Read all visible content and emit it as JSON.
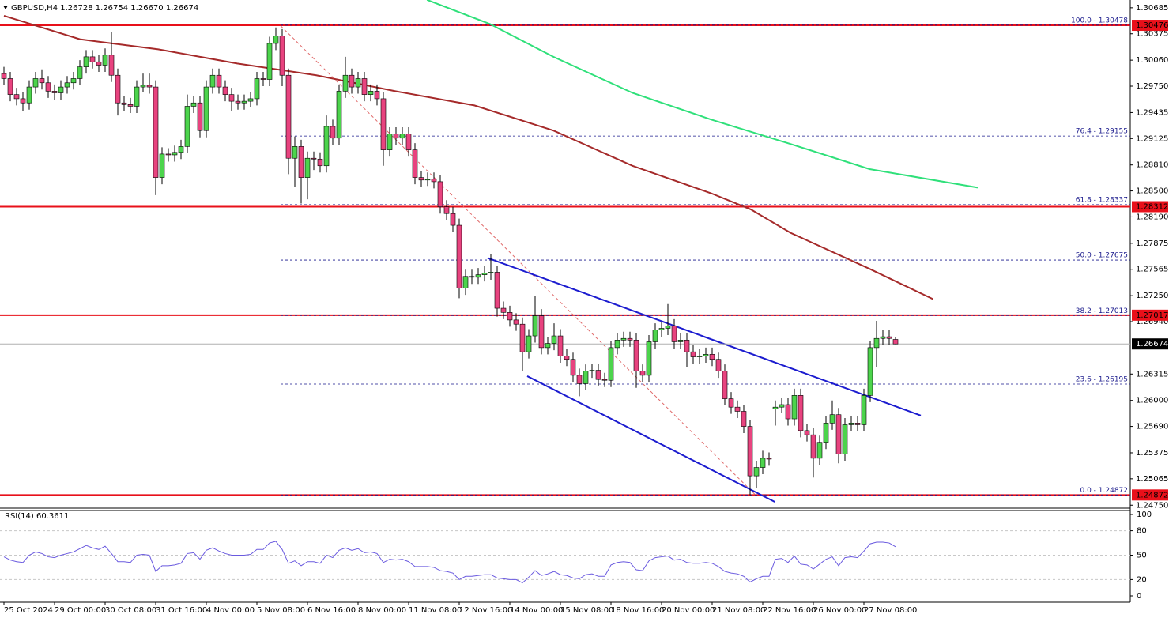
{
  "chart_data": {
    "type": "candlestick",
    "title": "GBPUSD,H4  1.26728 1.26754 1.26670 1.26674",
    "up_color": "#4cd44c",
    "down_color": "#e8437f",
    "categories": [
      "25 Oct 2024",
      null,
      null,
      null,
      null,
      null,
      null,
      null,
      "29 Oct 00:00",
      null,
      null,
      null,
      null,
      null,
      null,
      null,
      "30 Oct 08:00",
      null,
      null,
      null,
      null,
      null,
      null,
      null,
      "31 Oct 16:00",
      null,
      null,
      null,
      null,
      null,
      null,
      null,
      "4 Nov 00:00",
      null,
      null,
      null,
      null,
      null,
      null,
      null,
      "5 Nov 08:00",
      null,
      null,
      null,
      null,
      null,
      null,
      null,
      "6 Nov 16:00",
      null,
      null,
      null,
      null,
      null,
      null,
      null,
      "8 Nov 00:00",
      null,
      null,
      null,
      null,
      null,
      null,
      null,
      "11 Nov 08:00",
      null,
      null,
      null,
      null,
      null,
      null,
      null,
      "12 Nov 16:00",
      null,
      null,
      null,
      null,
      null,
      null,
      null,
      "14 Nov 00:00",
      null,
      null,
      null,
      null,
      null,
      null,
      null,
      "15 Nov 08:00",
      null,
      null,
      null,
      null,
      null,
      null,
      null,
      "18 Nov 16:00",
      null,
      null,
      null,
      null,
      null,
      null,
      null,
      "20 Nov 00:00",
      null,
      null,
      null,
      null,
      null,
      null,
      null,
      "21 Nov 08:00",
      null,
      null,
      null,
      null,
      null,
      null,
      null,
      "22 Nov 16:00",
      null,
      null,
      null,
      null,
      null,
      null,
      null,
      "26 Nov 00:00",
      null,
      null,
      null,
      null,
      null,
      null,
      null,
      "27 Nov 08:00",
      null,
      null,
      null,
      null,
      null
    ],
    "ohlc": [
      [
        1.299,
        1.2998,
        1.2976,
        1.2984
      ],
      [
        1.2984,
        1.2992,
        1.2957,
        1.2965
      ],
      [
        1.2965,
        1.2973,
        1.2952,
        1.296
      ],
      [
        1.296,
        1.2968,
        1.2945,
        1.2955
      ],
      [
        1.2955,
        1.2982,
        1.2947,
        1.2974
      ],
      [
        1.2974,
        1.2992,
        1.2966,
        1.2984
      ],
      [
        1.2984,
        1.2995,
        1.2971,
        1.2979
      ],
      [
        1.2979,
        1.2987,
        1.2961,
        1.2969
      ],
      [
        1.2969,
        1.2977,
        1.2959,
        1.2967
      ],
      [
        1.2967,
        1.2982,
        1.2959,
        1.2974
      ],
      [
        1.2974,
        1.2987,
        1.2966,
        1.2979
      ],
      [
        1.2979,
        1.2992,
        1.2971,
        1.2984
      ],
      [
        1.2984,
        1.3006,
        1.2976,
        1.2998
      ],
      [
        1.2998,
        1.3018,
        1.299,
        1.301
      ],
      [
        1.301,
        1.3018,
        1.2996,
        1.3004
      ],
      [
        1.3004,
        1.3012,
        1.2992,
        1.3
      ],
      [
        1.3,
        1.302,
        1.2992,
        1.3012
      ],
      [
        1.3012,
        1.304,
        1.298,
        1.2988
      ],
      [
        1.2988,
        1.2996,
        1.294,
        1.2955
      ],
      [
        1.2955,
        1.2963,
        1.2945,
        1.2953
      ],
      [
        1.2953,
        1.2961,
        1.2943,
        1.2951
      ],
      [
        1.2951,
        1.2982,
        1.2943,
        1.2974
      ],
      [
        1.2974,
        1.299,
        1.2968,
        1.2976
      ],
      [
        1.2976,
        1.299,
        1.2966,
        1.2974
      ],
      [
        1.2974,
        1.2982,
        1.2845,
        1.2866
      ],
      [
        1.2866,
        1.2902,
        1.2858,
        1.2894
      ],
      [
        1.2894,
        1.2901,
        1.2885,
        1.2893
      ],
      [
        1.2893,
        1.2904,
        1.2885,
        1.2896
      ],
      [
        1.2896,
        1.2911,
        1.2888,
        1.2903
      ],
      [
        1.2903,
        1.2965,
        1.2895,
        1.2951
      ],
      [
        1.2951,
        1.2963,
        1.2943,
        1.2955
      ],
      [
        1.2955,
        1.2963,
        1.2914,
        1.2922
      ],
      [
        1.2922,
        1.2982,
        1.2914,
        1.2974
      ],
      [
        1.2974,
        1.2996,
        1.2966,
        1.2988
      ],
      [
        1.2988,
        1.2996,
        1.2966,
        1.2974
      ],
      [
        1.2974,
        1.2982,
        1.2957,
        1.2965
      ],
      [
        1.2965,
        1.2973,
        1.2945,
        1.2957
      ],
      [
        1.2957,
        1.2965,
        1.2947,
        1.2955
      ],
      [
        1.2955,
        1.2965,
        1.2947,
        1.2957
      ],
      [
        1.2957,
        1.2968,
        1.295,
        1.296
      ],
      [
        1.296,
        1.2992,
        1.2952,
        1.2984
      ],
      [
        1.2984,
        1.2992,
        1.2975,
        1.2983
      ],
      [
        1.2983,
        1.3034,
        1.2975,
        1.3026
      ],
      [
        1.3026,
        1.3045,
        1.3018,
        1.3035
      ],
      [
        1.3035,
        1.3043,
        1.2975,
        1.2988
      ],
      [
        1.2988,
        1.2996,
        1.287,
        1.2889
      ],
      [
        1.2889,
        1.2915,
        1.2855,
        1.2903
      ],
      [
        1.2903,
        1.2911,
        1.2835,
        1.2866
      ],
      [
        1.2866,
        1.2897,
        1.284,
        1.2889
      ],
      [
        1.2889,
        1.2897,
        1.2875,
        1.2888
      ],
      [
        1.2888,
        1.2896,
        1.2872,
        1.288
      ],
      [
        1.288,
        1.294,
        1.2872,
        1.2927
      ],
      [
        1.2927,
        1.2935,
        1.2905,
        1.2913
      ],
      [
        1.2913,
        1.2977,
        1.2905,
        1.2969
      ],
      [
        1.2969,
        1.301,
        1.2961,
        1.2988
      ],
      [
        1.2988,
        1.2996,
        1.2966,
        1.2974
      ],
      [
        1.2974,
        1.2992,
        1.2966,
        1.2984
      ],
      [
        1.2984,
        1.2992,
        1.2957,
        1.2965
      ],
      [
        1.2965,
        1.2977,
        1.2957,
        1.2969
      ],
      [
        1.2969,
        1.2977,
        1.2952,
        1.296
      ],
      [
        1.296,
        1.2968,
        1.288,
        1.2899
      ],
      [
        1.2899,
        1.2926,
        1.2891,
        1.2918
      ],
      [
        1.2918,
        1.2926,
        1.2905,
        1.2913
      ],
      [
        1.2913,
        1.2926,
        1.2905,
        1.2918
      ],
      [
        1.2918,
        1.2926,
        1.2891,
        1.2899
      ],
      [
        1.2899,
        1.2907,
        1.2858,
        1.2866
      ],
      [
        1.2866,
        1.2874,
        1.2855,
        1.2863
      ],
      [
        1.2863,
        1.2872,
        1.2856,
        1.2864
      ],
      [
        1.2864,
        1.2872,
        1.2853,
        1.2861
      ],
      [
        1.2861,
        1.2869,
        1.2823,
        1.2831
      ],
      [
        1.2831,
        1.2839,
        1.2815,
        1.2823
      ],
      [
        1.2823,
        1.2831,
        1.2801,
        1.2809
      ],
      [
        1.2809,
        1.2817,
        1.2722,
        1.2734
      ],
      [
        1.2734,
        1.2756,
        1.2726,
        1.2748
      ],
      [
        1.2748,
        1.2756,
        1.2739,
        1.2747
      ],
      [
        1.2747,
        1.2758,
        1.2739,
        1.275
      ],
      [
        1.275,
        1.276,
        1.2742,
        1.2752
      ],
      [
        1.2752,
        1.2775,
        1.2744,
        1.2753
      ],
      [
        1.2753,
        1.2761,
        1.27,
        1.271
      ],
      [
        1.271,
        1.2718,
        1.2697,
        1.2705
      ],
      [
        1.2705,
        1.2713,
        1.2688,
        1.2696
      ],
      [
        1.2696,
        1.2704,
        1.2683,
        1.2691
      ],
      [
        1.2691,
        1.2699,
        1.2635,
        1.2658
      ],
      [
        1.2658,
        1.2685,
        1.265,
        1.2677
      ],
      [
        1.2677,
        1.2725,
        1.2669,
        1.2701
      ],
      [
        1.2701,
        1.2709,
        1.2655,
        1.2663
      ],
      [
        1.2663,
        1.2676,
        1.2655,
        1.2668
      ],
      [
        1.2668,
        1.2692,
        1.266,
        1.2677
      ],
      [
        1.2677,
        1.2685,
        1.2645,
        1.2653
      ],
      [
        1.2653,
        1.2661,
        1.2641,
        1.2649
      ],
      [
        1.2649,
        1.2657,
        1.2622,
        1.263
      ],
      [
        1.263,
        1.2638,
        1.2605,
        1.262
      ],
      [
        1.262,
        1.2643,
        1.2612,
        1.2635
      ],
      [
        1.2635,
        1.2644,
        1.2627,
        1.2636
      ],
      [
        1.2636,
        1.2644,
        1.2617,
        1.2625
      ],
      [
        1.2625,
        1.2633,
        1.2616,
        1.2624
      ],
      [
        1.2624,
        1.2671,
        1.2616,
        1.2663
      ],
      [
        1.2663,
        1.268,
        1.2655,
        1.2672
      ],
      [
        1.2672,
        1.2682,
        1.2664,
        1.2674
      ],
      [
        1.2674,
        1.2682,
        1.2664,
        1.2672
      ],
      [
        1.2672,
        1.268,
        1.2615,
        1.2635
      ],
      [
        1.2635,
        1.2643,
        1.2622,
        1.263
      ],
      [
        1.263,
        1.2678,
        1.2622,
        1.267
      ],
      [
        1.267,
        1.2692,
        1.2662,
        1.2684
      ],
      [
        1.2684,
        1.2694,
        1.2676,
        1.2686
      ],
      [
        1.2686,
        1.2715,
        1.2678,
        1.2689
      ],
      [
        1.2689,
        1.2697,
        1.2662,
        1.267
      ],
      [
        1.267,
        1.268,
        1.2662,
        1.2672
      ],
      [
        1.2672,
        1.268,
        1.264,
        1.2658
      ],
      [
        1.2658,
        1.2666,
        1.2644,
        1.2652
      ],
      [
        1.2652,
        1.2661,
        1.2644,
        1.2653
      ],
      [
        1.2653,
        1.2663,
        1.2645,
        1.2655
      ],
      [
        1.2655,
        1.2663,
        1.2641,
        1.2649
      ],
      [
        1.2649,
        1.2657,
        1.2627,
        1.2635
      ],
      [
        1.2635,
        1.2643,
        1.2594,
        1.2602
      ],
      [
        1.2602,
        1.261,
        1.2584,
        1.2592
      ],
      [
        1.2592,
        1.26,
        1.2579,
        1.2587
      ],
      [
        1.2587,
        1.2595,
        1.2561,
        1.2569
      ],
      [
        1.2569,
        1.2577,
        1.2487,
        1.251
      ],
      [
        1.251,
        1.2528,
        1.2495,
        1.252
      ],
      [
        1.252,
        1.254,
        1.2512,
        1.2531
      ],
      [
        1.2531,
        1.2538,
        1.2522,
        1.253
      ],
      [
        1.259,
        1.26,
        1.257,
        1.2592
      ],
      [
        1.2592,
        1.2603,
        1.2585,
        1.2595
      ],
      [
        1.2595,
        1.2603,
        1.257,
        1.2578
      ],
      [
        1.2578,
        1.2614,
        1.257,
        1.2606
      ],
      [
        1.2606,
        1.2614,
        1.2556,
        1.2564
      ],
      [
        1.2564,
        1.2572,
        1.2551,
        1.2559
      ],
      [
        1.2559,
        1.2567,
        1.2508,
        1.2531
      ],
      [
        1.2531,
        1.2558,
        1.2523,
        1.255
      ],
      [
        1.255,
        1.2581,
        1.2542,
        1.2573
      ],
      [
        1.2573,
        1.26,
        1.2565,
        1.2583
      ],
      [
        1.2583,
        1.2591,
        1.2525,
        1.2536
      ],
      [
        1.2536,
        1.2579,
        1.2528,
        1.2571
      ],
      [
        1.2571,
        1.2581,
        1.2563,
        1.2573
      ],
      [
        1.2573,
        1.2581,
        1.2563,
        1.2571
      ],
      [
        1.2571,
        1.2614,
        1.2563,
        1.2606
      ],
      [
        1.2606,
        1.2671,
        1.2598,
        1.2663
      ],
      [
        1.2663,
        1.2695,
        1.264,
        1.2674
      ],
      [
        1.2674,
        1.2684,
        1.2666,
        1.2676
      ],
      [
        1.2676,
        1.2684,
        1.2666,
        1.2674
      ],
      [
        1.26728,
        1.26754,
        1.2667,
        1.26674
      ]
    ],
    "ylim": [
      1.24743,
      1.30778
    ],
    "yticks": [
      1.30685,
      1.30375,
      {
        "value": 1.3006,
        "label": "1.30060"
      },
      {
        "value": 1.2975,
        "label": "1.29750"
      },
      1.29435,
      1.29125,
      {
        "value": 1.2881,
        "label": "1.28810"
      },
      {
        "value": 1.285,
        "label": "1.28500"
      },
      {
        "value": 1.2819,
        "label": "1.28190"
      },
      1.27875,
      1.27565,
      {
        "value": 1.2725,
        "label": "1.27250"
      },
      {
        "value": 1.2694,
        "label": "1.26940"
      },
      1.26315,
      {
        "value": 1.26,
        "label": "1.26000"
      },
      {
        "value": 1.2569,
        "label": "1.25690"
      },
      1.25375,
      1.25065,
      {
        "value": 1.2475,
        "label": "1.24750"
      }
    ],
    "levels": [
      1.30476,
      1.28312,
      1.27017,
      1.24872
    ],
    "levels_color": "#e8101a",
    "fibonacci": [
      {
        "label": "100.0 - 1.30478",
        "value": 1.30478
      },
      {
        "label": "76.4 - 1.29155",
        "value": 1.29155
      },
      {
        "label": "61.8 - 1.28337",
        "value": 1.28337
      },
      {
        "label": "50.0 - 1.27675",
        "value": 1.27675
      },
      {
        "label": "38.2 - 1.27013",
        "value": 1.27013
      },
      {
        "label": "23.6 - 1.26195",
        "value": 1.26195
      },
      {
        "label": "0.0 - 1.24872",
        "value": 1.24872
      }
    ],
    "fibonacci_color": "#1a1a8c",
    "last_price": 1.26674,
    "moving_averages": [
      {
        "color": "#a52a2a",
        "x": [
          0,
          12,
          24.4,
          36.9,
          49.4,
          61.9,
          74.4,
          86.9,
          99.4,
          111.9,
          118.1,
          124.4,
          136.9,
          146.9
        ],
        "values": [
          1.3059,
          1.3031,
          1.3019,
          1.3002,
          1.2988,
          1.2969,
          1.2952,
          1.2922,
          1.288,
          1.2847,
          1.2828,
          1.28,
          1.2757,
          1.2721
        ]
      },
      {
        "color": "#2fe07a",
        "x": [
          66.9,
          76.9,
          86.9,
          99.4,
          111.9,
          124.4,
          136.9,
          154
        ],
        "values": [
          1.3078,
          1.3049,
          1.301,
          1.2967,
          1.2935,
          1.2906,
          1.2876,
          1.2854
        ]
      }
    ],
    "trendlines": [
      {
        "color": "#e06a6a",
        "dashed": true,
        "x": [
          43.75,
          118.75
        ],
        "values": [
          1.3047,
          1.2488
        ]
      },
      {
        "color": "#1c1ccf",
        "dashed": false,
        "x": [
          76.5,
          145
        ],
        "values": [
          1.277,
          1.2582
        ]
      },
      {
        "color": "#1c1ccf",
        "dashed": false,
        "x": [
          82.75,
          121.9
        ],
        "values": [
          1.2629,
          1.2479
        ]
      }
    ],
    "rsi": {
      "title": "RSI(14) 60.3611",
      "color": "#6a5adf",
      "ylim": [
        0,
        100
      ],
      "yticks": [
        100,
        80,
        50,
        20,
        0
      ],
      "values": [
        48,
        44,
        42,
        41,
        50,
        54,
        52,
        48,
        47,
        50,
        52,
        54,
        58,
        62,
        59,
        57,
        61,
        52,
        42,
        42,
        41,
        50,
        51,
        50,
        30,
        37,
        37,
        38,
        40,
        52,
        53,
        45,
        56,
        59,
        55,
        52,
        50,
        50,
        50,
        51,
        57,
        57,
        65,
        67,
        57,
        40,
        43,
        37,
        42,
        42,
        40,
        50,
        47,
        56,
        59,
        56,
        58,
        53,
        54,
        52,
        41,
        45,
        44,
        45,
        42,
        36,
        36,
        36,
        35,
        31,
        30,
        28,
        20,
        24,
        24,
        25,
        26,
        26,
        22,
        21,
        20,
        20,
        16,
        23,
        31,
        25,
        27,
        30,
        26,
        25,
        22,
        21,
        26,
        27,
        24,
        24,
        38,
        41,
        42,
        41,
        32,
        31,
        43,
        47,
        48,
        49,
        44,
        45,
        41,
        40,
        40,
        41,
        40,
        36,
        30,
        28,
        27,
        24,
        17,
        21,
        24,
        24,
        45,
        46,
        41,
        49,
        39,
        38,
        33,
        39,
        45,
        48,
        37,
        47,
        48,
        47,
        55,
        64,
        66,
        66,
        65,
        60.3611
      ]
    }
  }
}
